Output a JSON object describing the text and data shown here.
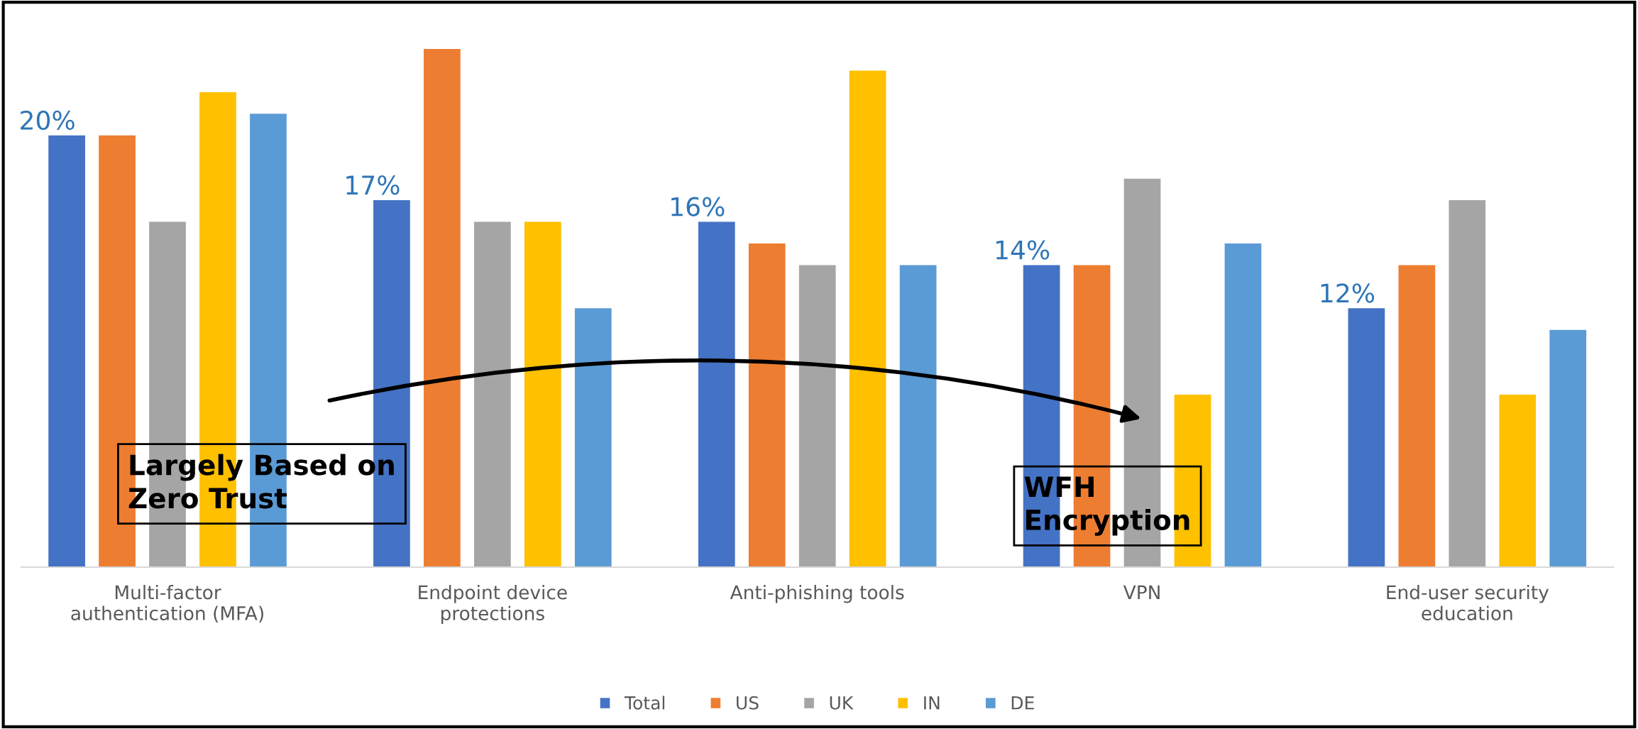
{
  "chart_data": {
    "type": "bar",
    "categories": [
      "Multi-factor\nauthentication (MFA)",
      "Endpoint device\nprotections",
      "Anti-phishing tools",
      "VPN",
      "End-user security\neducation"
    ],
    "series": [
      {
        "name": "Total",
        "color": "#4472c4",
        "values": [
          20,
          17,
          16,
          14,
          12
        ],
        "value_labels": [
          "20%",
          "17%",
          "16%",
          "14%",
          "12%"
        ]
      },
      {
        "name": "US",
        "color": "#ed7d31",
        "values": [
          20,
          24,
          15,
          14,
          14
        ]
      },
      {
        "name": "UK",
        "color": "#a5a5a5",
        "values": [
          16,
          16,
          14,
          18,
          17
        ]
      },
      {
        "name": "IN",
        "color": "#ffc000",
        "values": [
          22,
          16,
          23,
          8,
          8
        ]
      },
      {
        "name": "DE",
        "color": "#5b9bd5",
        "values": [
          21,
          12,
          14,
          15,
          11
        ]
      }
    ],
    "annotations": [
      "Largely Based on\nZero Trust",
      "WFH\nEncryption"
    ],
    "legend": "bottom",
    "grid": false
  }
}
